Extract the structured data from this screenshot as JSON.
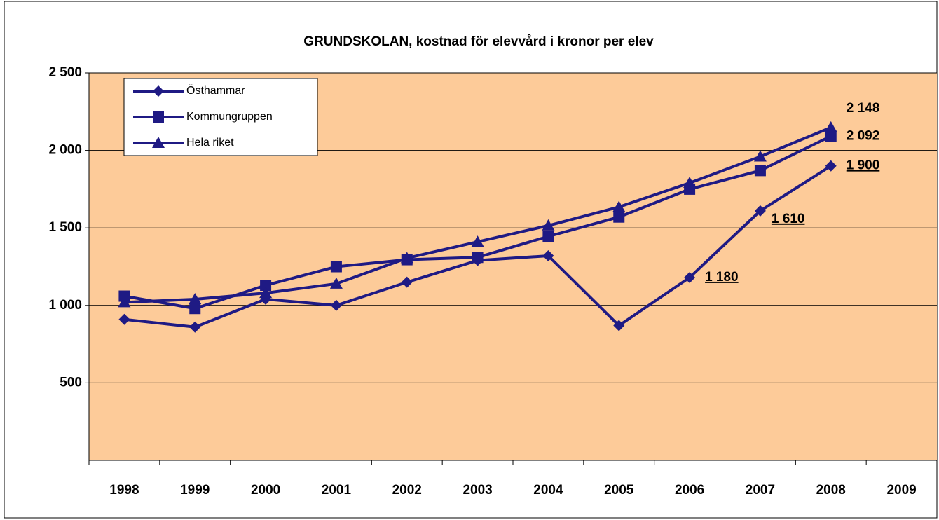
{
  "chart_data": {
    "type": "line",
    "title": "GRUNDSKOLAN, kostnad för elevvård i kronor per elev",
    "categories": [
      "1998",
      "1999",
      "2000",
      "2001",
      "2002",
      "2003",
      "2004",
      "2005",
      "2006",
      "2007",
      "2008",
      "2009"
    ],
    "series": [
      {
        "name": "Östhammar",
        "color": "#1f1a84",
        "marker": "diamond",
        "values": [
          910,
          860,
          1040,
          1000,
          1150,
          1290,
          1320,
          870,
          1180,
          1610,
          1900,
          null
        ],
        "value_labels": [
          null,
          null,
          null,
          null,
          null,
          null,
          null,
          null,
          "1 180",
          "1 610",
          "1 900",
          null
        ]
      },
      {
        "name": "Kommungruppen",
        "color": "#1f1a84",
        "marker": "square",
        "values": [
          1060,
          980,
          1130,
          1250,
          1295,
          1310,
          1445,
          1570,
          1750,
          1870,
          2092,
          null
        ],
        "value_labels": [
          null,
          null,
          null,
          null,
          null,
          null,
          null,
          null,
          null,
          null,
          "2 092",
          null
        ]
      },
      {
        "name": "Hela riket",
        "color": "#1f1a84",
        "marker": "triangle",
        "values": [
          1020,
          1040,
          1080,
          1140,
          1305,
          1410,
          1515,
          1635,
          1790,
          1960,
          2148,
          null
        ],
        "value_labels": [
          null,
          null,
          null,
          null,
          null,
          null,
          null,
          null,
          null,
          null,
          "2 148",
          null
        ]
      }
    ],
    "ylim": [
      0,
      2500
    ],
    "yticks": [
      {
        "value": 500,
        "label": "500"
      },
      {
        "value": 1000,
        "label": "1 000"
      },
      {
        "value": 1500,
        "label": "1 500"
      },
      {
        "value": 2000,
        "label": "2 000"
      },
      {
        "value": 2500,
        "label": "2 500"
      }
    ],
    "grid": true,
    "plot_background": "#fdcb99",
    "legend": "upper left"
  }
}
